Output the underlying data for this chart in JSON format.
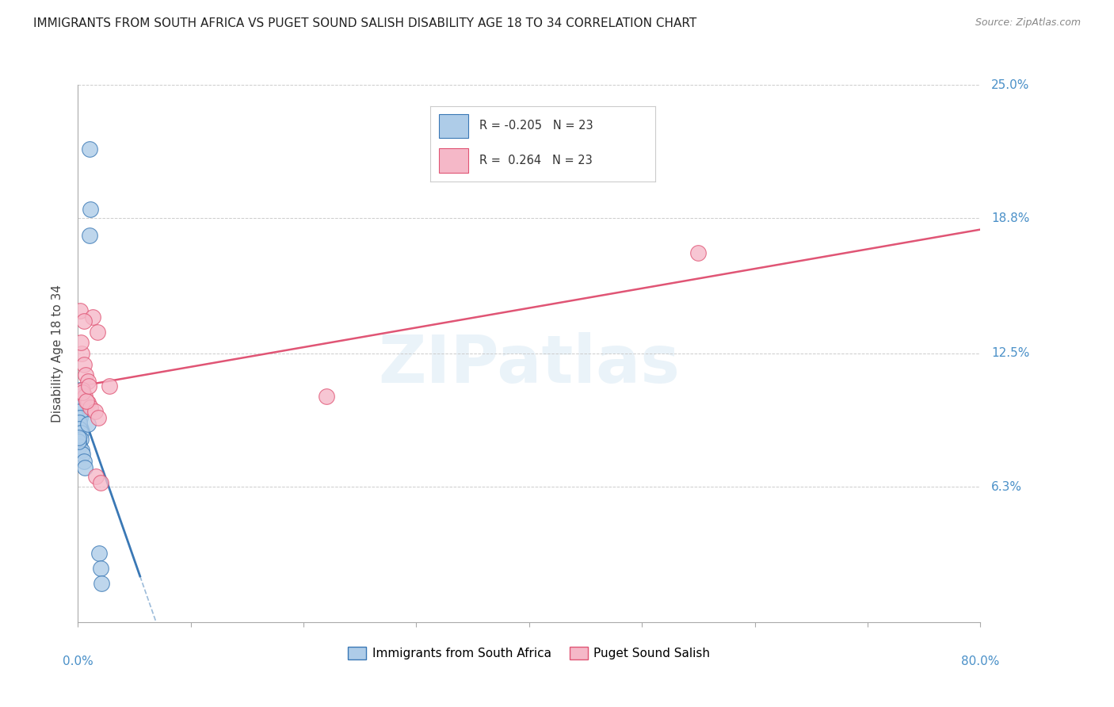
{
  "title": "IMMIGRANTS FROM SOUTH AFRICA VS PUGET SOUND SALISH DISABILITY AGE 18 TO 34 CORRELATION CHART",
  "source": "Source: ZipAtlas.com",
  "ylabel": "Disability Age 18 to 34",
  "ytick_labels": [
    "6.3%",
    "12.5%",
    "18.8%",
    "25.0%"
  ],
  "ytick_values": [
    6.3,
    12.5,
    18.8,
    25.0
  ],
  "xlim": [
    0.0,
    80.0
  ],
  "ylim": [
    0.0,
    25.0
  ],
  "series1_label": "Immigrants from South Africa",
  "series2_label": "Puget Sound Salish",
  "series1_color": "#aecce8",
  "series2_color": "#f5b8c8",
  "trendline1_color": "#3a78b5",
  "trendline2_color": "#e05575",
  "background_color": "#ffffff",
  "blue_x": [
    1.0,
    1.1,
    1.05,
    0.2,
    0.25,
    0.3,
    0.15,
    0.18,
    0.12,
    0.1,
    0.22,
    0.28,
    0.08,
    0.35,
    0.4,
    0.5,
    0.6,
    1.9,
    2.0,
    2.1,
    0.05,
    0.07,
    0.9
  ],
  "blue_y": [
    22.0,
    19.2,
    18.0,
    10.8,
    10.5,
    10.2,
    9.8,
    9.5,
    9.3,
    9.0,
    8.8,
    8.5,
    8.2,
    8.0,
    7.8,
    7.5,
    7.2,
    3.2,
    2.5,
    1.8,
    8.4,
    8.6,
    9.2
  ],
  "pink_x": [
    0.2,
    1.3,
    1.7,
    0.35,
    0.5,
    0.7,
    0.9,
    2.8,
    0.4,
    0.6,
    0.85,
    1.1,
    1.5,
    1.8,
    0.25,
    0.55,
    1.6,
    2.0,
    55.0,
    22.0,
    0.38,
    0.75,
    0.95
  ],
  "pink_y": [
    14.5,
    14.2,
    13.5,
    12.5,
    12.0,
    11.5,
    11.2,
    11.0,
    10.8,
    10.5,
    10.2,
    10.0,
    9.8,
    9.5,
    13.0,
    14.0,
    6.8,
    6.5,
    17.2,
    10.5,
    10.7,
    10.3,
    11.0
  ],
  "trendline1_x_start": 0.0,
  "trendline1_x_end_solid": 5.5,
  "trendline1_x_end_dash": 20.0,
  "trendline2_x_start": 0.0,
  "trendline2_x_end": 80.0
}
